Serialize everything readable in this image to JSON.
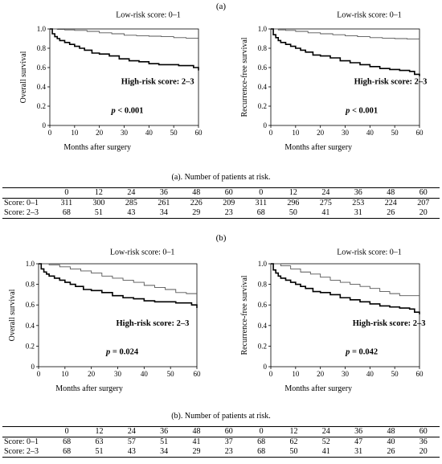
{
  "figure": {
    "panels": [
      {
        "label": "(a)",
        "caption": "(a). Number of patients at risk.",
        "risk_table": {
          "times": [
            "0",
            "12",
            "24",
            "36",
            "48",
            "60"
          ],
          "rows": [
            {
              "label": "Score: 0–1",
              "os": [
                "311",
                "300",
                "285",
                "261",
                "226",
                "209"
              ],
              "rfs": [
                "311",
                "296",
                "275",
                "253",
                "224",
                "207"
              ]
            },
            {
              "label": "Score: 2–3",
              "os": [
                "68",
                "51",
                "43",
                "34",
                "29",
                "23"
              ],
              "rfs": [
                "68",
                "50",
                "41",
                "31",
                "26",
                "20"
              ]
            }
          ]
        }
      },
      {
        "label": "(b)",
        "caption": "(b). Number of patients at risk.",
        "risk_table": {
          "times": [
            "0",
            "12",
            "24",
            "36",
            "48",
            "60"
          ],
          "rows": [
            {
              "label": "Score: 0–1",
              "os": [
                "68",
                "63",
                "57",
                "51",
                "41",
                "37"
              ],
              "rfs": [
                "68",
                "62",
                "52",
                "47",
                "40",
                "36"
              ]
            },
            {
              "label": "Score: 2–3",
              "os": [
                "68",
                "51",
                "43",
                "34",
                "29",
                "23"
              ],
              "rfs": [
                "68",
                "50",
                "41",
                "31",
                "26",
                "20"
              ]
            }
          ]
        }
      }
    ]
  },
  "chart_data": [
    {
      "type": "line",
      "xlabel": "Months after surgery",
      "ylabel": "Overall survival",
      "xlim": [
        0,
        60
      ],
      "ylim": [
        0,
        1.0
      ],
      "xticks": [
        "0",
        "10",
        "20",
        "30",
        "40",
        "50",
        "60"
      ],
      "yticks": [
        "0",
        "0.2",
        "0.4",
        "0.6",
        "0.8",
        "1.0"
      ],
      "annotations": [
        "Low-risk score: 0–1",
        "High-risk score: 2–3",
        "p < 0.001"
      ],
      "series": [
        {
          "name": "Low-risk score: 0–1",
          "style": "thin",
          "color": "#555555",
          "x": [
            0,
            3,
            6,
            10,
            15,
            20,
            25,
            30,
            35,
            40,
            45,
            50,
            55,
            60
          ],
          "y": [
            1.0,
            0.995,
            0.99,
            0.985,
            0.975,
            0.96,
            0.95,
            0.935,
            0.93,
            0.925,
            0.92,
            0.91,
            0.905,
            0.905
          ]
        },
        {
          "name": "High-risk score: 2–3",
          "style": "thick",
          "color": "#000000",
          "x": [
            0,
            1,
            2,
            3,
            4,
            6,
            8,
            10,
            12,
            14,
            17,
            20,
            24,
            28,
            32,
            36,
            40,
            44,
            48,
            52,
            56,
            58,
            60
          ],
          "y": [
            1.0,
            0.95,
            0.92,
            0.9,
            0.88,
            0.86,
            0.84,
            0.82,
            0.8,
            0.78,
            0.75,
            0.74,
            0.72,
            0.69,
            0.67,
            0.66,
            0.64,
            0.63,
            0.63,
            0.62,
            0.62,
            0.6,
            0.57
          ]
        }
      ]
    },
    {
      "type": "line",
      "xlabel": "Months after surgery",
      "ylabel": "Recurrence-free survival",
      "xlim": [
        0,
        60
      ],
      "ylim": [
        0,
        1.0
      ],
      "xticks": [
        "0",
        "10",
        "20",
        "30",
        "40",
        "50",
        "60"
      ],
      "yticks": [
        "0",
        "0.2",
        "0.4",
        "0.6",
        "0.8",
        "1.0"
      ],
      "annotations": [
        "Low-risk score: 0–1",
        "High-risk score: 2–3",
        "p < 0.001"
      ],
      "series": [
        {
          "name": "Low-risk score: 0–1",
          "style": "thin",
          "color": "#555555",
          "x": [
            0,
            3,
            6,
            10,
            15,
            20,
            25,
            30,
            35,
            40,
            45,
            50,
            55,
            60
          ],
          "y": [
            1.0,
            0.99,
            0.985,
            0.975,
            0.96,
            0.95,
            0.94,
            0.93,
            0.92,
            0.91,
            0.905,
            0.9,
            0.895,
            0.89
          ]
        },
        {
          "name": "High-risk score: 2–3",
          "style": "thick",
          "color": "#000000",
          "x": [
            0,
            1,
            2,
            3,
            4,
            6,
            8,
            10,
            12,
            14,
            17,
            20,
            24,
            28,
            32,
            36,
            40,
            44,
            48,
            52,
            56,
            58,
            60
          ],
          "y": [
            1.0,
            0.94,
            0.91,
            0.88,
            0.86,
            0.84,
            0.82,
            0.8,
            0.78,
            0.76,
            0.73,
            0.72,
            0.7,
            0.67,
            0.65,
            0.63,
            0.61,
            0.59,
            0.58,
            0.57,
            0.56,
            0.53,
            0.51
          ]
        }
      ]
    },
    {
      "type": "line",
      "xlabel": "Months after surgery",
      "ylabel": "Overall survival",
      "xlim": [
        0,
        60
      ],
      "ylim": [
        0,
        1.0
      ],
      "xticks": [
        "0",
        "10",
        "20",
        "30",
        "40",
        "50",
        "60"
      ],
      "yticks": [
        "0",
        "0.2",
        "0.4",
        "0.6",
        "0.8",
        "1.0"
      ],
      "annotations": [
        "Low-risk score: 0–1",
        "High-risk score: 2–3",
        "p = 0.024"
      ],
      "series": [
        {
          "name": "Low-risk score: 0–1",
          "style": "thin",
          "color": "#555555",
          "x": [
            0,
            4,
            8,
            12,
            16,
            20,
            24,
            28,
            32,
            36,
            40,
            44,
            48,
            52,
            56,
            60
          ],
          "y": [
            1.0,
            0.99,
            0.97,
            0.95,
            0.93,
            0.91,
            0.88,
            0.86,
            0.84,
            0.82,
            0.79,
            0.77,
            0.75,
            0.72,
            0.71,
            0.71
          ]
        },
        {
          "name": "High-risk score: 2–3",
          "style": "thick",
          "color": "#000000",
          "x": [
            0,
            1,
            2,
            3,
            4,
            6,
            8,
            10,
            12,
            14,
            17,
            20,
            24,
            28,
            32,
            36,
            40,
            44,
            48,
            52,
            56,
            58,
            60
          ],
          "y": [
            1.0,
            0.95,
            0.92,
            0.9,
            0.88,
            0.86,
            0.84,
            0.82,
            0.8,
            0.78,
            0.75,
            0.74,
            0.72,
            0.69,
            0.67,
            0.66,
            0.64,
            0.63,
            0.63,
            0.62,
            0.62,
            0.6,
            0.57
          ]
        }
      ]
    },
    {
      "type": "line",
      "xlabel": "Months after surgery",
      "ylabel": "Recurrence-free survival",
      "xlim": [
        0,
        60
      ],
      "ylim": [
        0,
        1.0
      ],
      "xticks": [
        "0",
        "10",
        "20",
        "30",
        "40",
        "50",
        "60"
      ],
      "yticks": [
        "0",
        "0.2",
        "0.4",
        "0.6",
        "0.8",
        "1.0"
      ],
      "annotations": [
        "Low-risk score: 0–1",
        "High-risk score: 2–3",
        "p = 0.042"
      ],
      "series": [
        {
          "name": "Low-risk score: 0–1",
          "style": "thin",
          "color": "#555555",
          "x": [
            0,
            4,
            8,
            12,
            16,
            20,
            24,
            28,
            32,
            36,
            40,
            44,
            48,
            52,
            56,
            60
          ],
          "y": [
            1.0,
            0.98,
            0.95,
            0.92,
            0.9,
            0.87,
            0.84,
            0.82,
            0.8,
            0.78,
            0.76,
            0.73,
            0.71,
            0.69,
            0.69,
            0.69
          ]
        },
        {
          "name": "High-risk score: 2–3",
          "style": "thick",
          "color": "#000000",
          "x": [
            0,
            1,
            2,
            3,
            4,
            6,
            8,
            10,
            12,
            14,
            17,
            20,
            24,
            28,
            32,
            36,
            40,
            44,
            48,
            52,
            56,
            58,
            60
          ],
          "y": [
            1.0,
            0.94,
            0.91,
            0.88,
            0.86,
            0.84,
            0.82,
            0.8,
            0.78,
            0.76,
            0.73,
            0.72,
            0.7,
            0.67,
            0.65,
            0.63,
            0.61,
            0.59,
            0.58,
            0.57,
            0.56,
            0.53,
            0.51
          ]
        }
      ]
    }
  ]
}
